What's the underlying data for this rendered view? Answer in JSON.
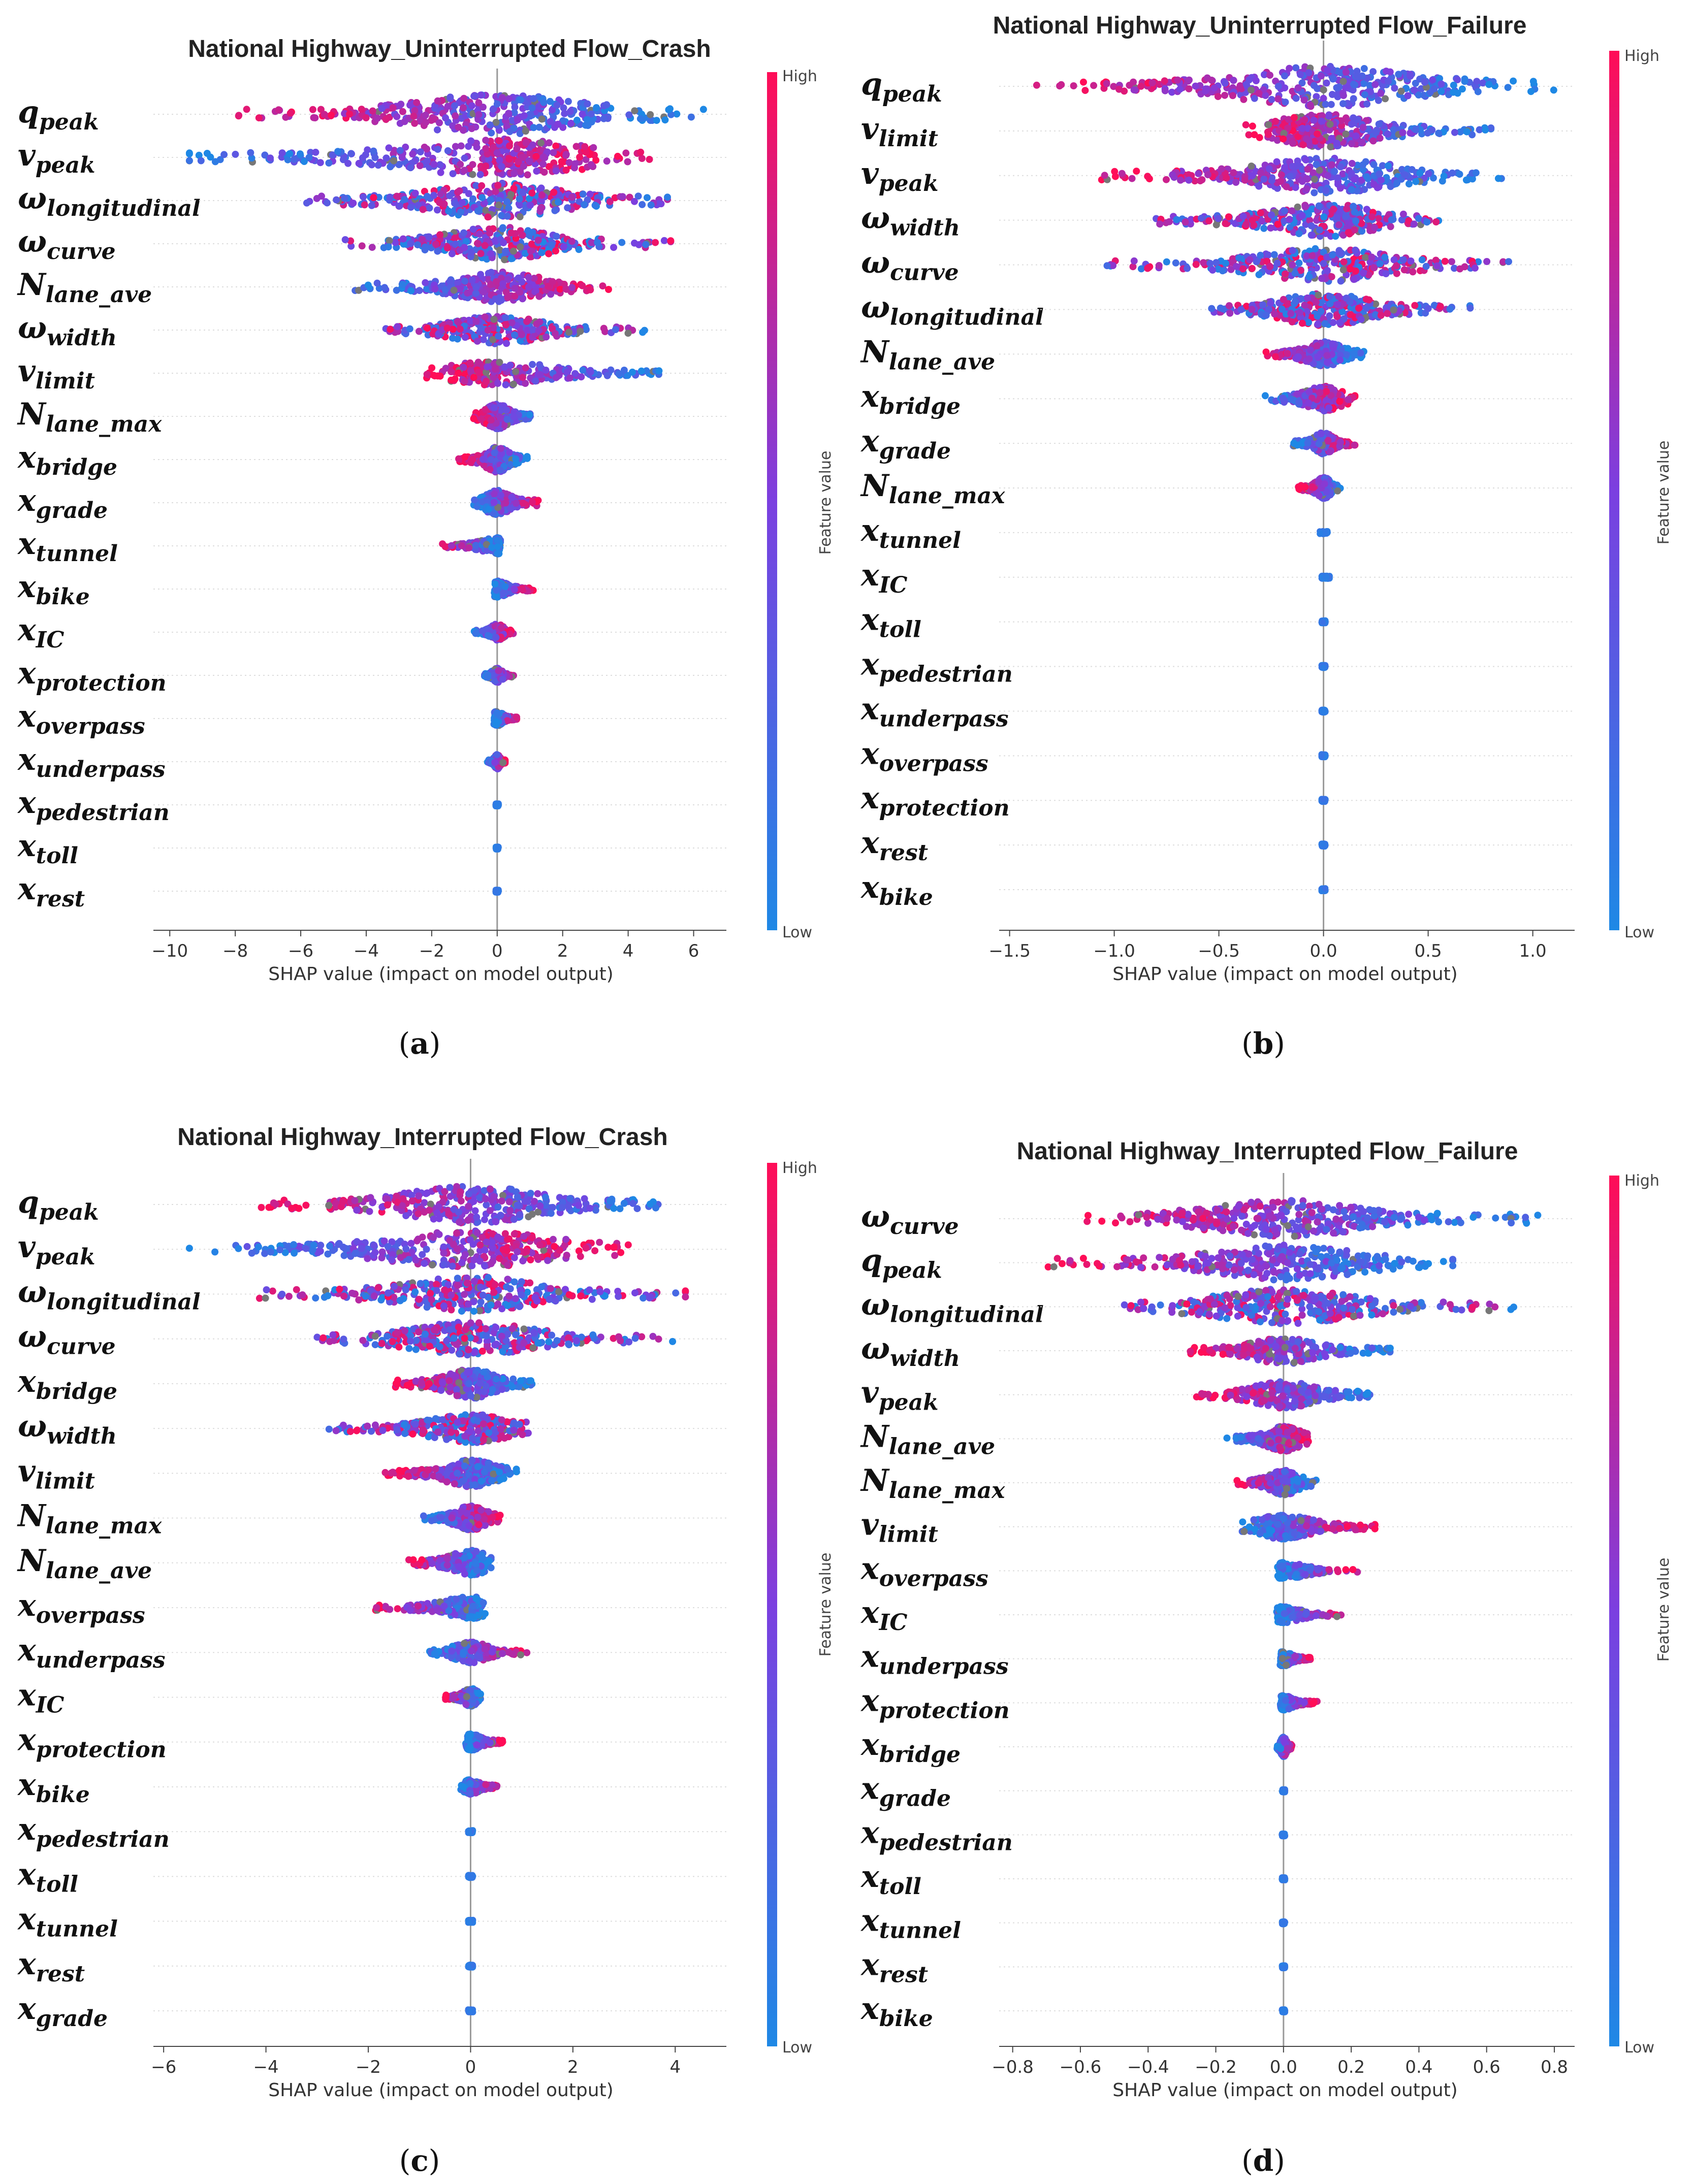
{
  "colorbar": {
    "high_label": "High",
    "low_label": "Low",
    "title": "Feature value",
    "color_low": "#1e88e5",
    "color_mid": "#7b3fe0",
    "color_high": "#ff0d57"
  },
  "chart_data": [
    {
      "type": "scatter",
      "subtype": "shap-beeswarm",
      "panel_caption": "a",
      "title": "National Highway_Uninterrupted Flow_Crash",
      "xlabel": "SHAP value (impact on model output)",
      "xlim": [
        -10.5,
        7.0
      ],
      "xticks": [
        -10,
        -8,
        -6,
        -4,
        -2,
        0,
        2,
        4,
        6
      ],
      "features": [
        {
          "base": "q",
          "sub": "peak",
          "min": -8.6,
          "max": 6.3,
          "spread": 1.0,
          "pattern": "hilo"
        },
        {
          "base": "v",
          "sub": "peak",
          "min": -9.4,
          "max": 4.8,
          "spread": 0.9,
          "pattern": "lohi"
        },
        {
          "base": "ω",
          "sub": "longitudinal",
          "min": -6.3,
          "max": 5.2,
          "spread": 0.85,
          "pattern": "mixed"
        },
        {
          "base": "ω",
          "sub": "curve",
          "min": -5.0,
          "max": 5.3,
          "spread": 0.8,
          "pattern": "mixed"
        },
        {
          "base": "N",
          "sub": "lane_ave",
          "min": -4.5,
          "max": 3.4,
          "spread": 0.7,
          "pattern": "lohi"
        },
        {
          "base": "ω",
          "sub": "width",
          "min": -3.4,
          "max": 4.5,
          "spread": 0.65,
          "pattern": "mixed"
        },
        {
          "base": "v",
          "sub": "limit",
          "min": -2.2,
          "max": 5.0,
          "spread": 0.55,
          "pattern": "hilo"
        },
        {
          "base": "N",
          "sub": "lane_max",
          "min": -0.8,
          "max": 1.2,
          "spread": 0.55,
          "pattern": "hilo"
        },
        {
          "base": "x",
          "sub": "bridge",
          "min": -1.2,
          "max": 1.0,
          "spread": 0.55,
          "pattern": "hilo"
        },
        {
          "base": "x",
          "sub": "grade",
          "min": -0.8,
          "max": 1.3,
          "spread": 0.55,
          "pattern": "lohi"
        },
        {
          "base": "x",
          "sub": "tunnel",
          "min": -1.8,
          "max": 0.1,
          "spread": 0.3,
          "pattern": "hilo"
        },
        {
          "base": "x",
          "sub": "bike",
          "min": -0.1,
          "max": 1.1,
          "spread": 0.3,
          "pattern": "lohi"
        },
        {
          "base": "x",
          "sub": "IC",
          "min": -0.7,
          "max": 0.5,
          "spread": 0.3,
          "pattern": "lohi"
        },
        {
          "base": "x",
          "sub": "protection",
          "min": -0.4,
          "max": 0.5,
          "spread": 0.25,
          "pattern": "lohi"
        },
        {
          "base": "x",
          "sub": "overpass",
          "min": -0.1,
          "max": 0.6,
          "spread": 0.25,
          "pattern": "lohi"
        },
        {
          "base": "x",
          "sub": "underpass",
          "min": -0.3,
          "max": 0.3,
          "spread": 0.25,
          "pattern": "lohi"
        },
        {
          "base": "x",
          "sub": "pedestrian",
          "min": -0.05,
          "max": 0.05,
          "spread": 0.2,
          "pattern": "line"
        },
        {
          "base": "x",
          "sub": "toll",
          "min": -0.05,
          "max": 0.05,
          "spread": 0.2,
          "pattern": "line"
        },
        {
          "base": "x",
          "sub": "rest",
          "min": -0.05,
          "max": 0.05,
          "spread": 0.2,
          "pattern": "line"
        }
      ]
    },
    {
      "type": "scatter",
      "subtype": "shap-beeswarm",
      "panel_caption": "b",
      "title": "National Highway_Uninterrupted Flow_Failure",
      "xlabel": "SHAP value (impact on model output)",
      "xlim": [
        -1.55,
        1.2
      ],
      "xticks": [
        -1.5,
        -1.0,
        -0.5,
        0.0,
        0.5,
        1.0
      ],
      "features": [
        {
          "base": "q",
          "sub": "peak",
          "min": -1.4,
          "max": 1.1,
          "spread": 1.0,
          "pattern": "hilo"
        },
        {
          "base": "v",
          "sub": "limit",
          "min": -0.4,
          "max": 0.8,
          "spread": 0.8,
          "pattern": "hilo"
        },
        {
          "base": "v",
          "sub": "peak",
          "min": -1.1,
          "max": 0.85,
          "spread": 0.85,
          "pattern": "hilo"
        },
        {
          "base": "ω",
          "sub": "width",
          "min": -0.8,
          "max": 0.55,
          "spread": 0.8,
          "pattern": "mixed"
        },
        {
          "base": "ω",
          "sub": "curve",
          "min": -1.05,
          "max": 0.9,
          "spread": 0.8,
          "pattern": "mixed"
        },
        {
          "base": "ω",
          "sub": "longitudinal",
          "min": -0.55,
          "max": 0.75,
          "spread": 0.75,
          "pattern": "mixed"
        },
        {
          "base": "N",
          "sub": "lane_ave",
          "min": -0.3,
          "max": 0.2,
          "spread": 0.55,
          "pattern": "hilo"
        },
        {
          "base": "x",
          "sub": "bridge",
          "min": -0.3,
          "max": 0.15,
          "spread": 0.55,
          "pattern": "lohi"
        },
        {
          "base": "x",
          "sub": "grade",
          "min": -0.15,
          "max": 0.15,
          "spread": 0.45,
          "pattern": "lohi"
        },
        {
          "base": "x",
          "sub": "lane_max",
          "base_override": "N",
          "min": -0.12,
          "max": 0.08,
          "spread": 0.45,
          "pattern": "hilo"
        },
        {
          "base": "x",
          "sub": "tunnel",
          "min": -0.02,
          "max": 0.02,
          "spread": 0.25,
          "pattern": "line"
        },
        {
          "base": "x",
          "sub": "IC",
          "min": -0.01,
          "max": 0.03,
          "spread": 0.25,
          "pattern": "line"
        },
        {
          "base": "x",
          "sub": "toll",
          "min": -0.01,
          "max": 0.01,
          "spread": 0.2,
          "pattern": "line"
        },
        {
          "base": "x",
          "sub": "pedestrian",
          "min": -0.01,
          "max": 0.01,
          "spread": 0.2,
          "pattern": "line"
        },
        {
          "base": "x",
          "sub": "underpass",
          "min": -0.01,
          "max": 0.01,
          "spread": 0.2,
          "pattern": "line"
        },
        {
          "base": "x",
          "sub": "overpass",
          "min": -0.01,
          "max": 0.01,
          "spread": 0.2,
          "pattern": "line"
        },
        {
          "base": "x",
          "sub": "protection",
          "min": -0.01,
          "max": 0.01,
          "spread": 0.2,
          "pattern": "line"
        },
        {
          "base": "x",
          "sub": "rest",
          "min": -0.01,
          "max": 0.01,
          "spread": 0.2,
          "pattern": "line"
        },
        {
          "base": "x",
          "sub": "bike",
          "min": -0.01,
          "max": 0.01,
          "spread": 0.2,
          "pattern": "line"
        }
      ]
    },
    {
      "type": "scatter",
      "subtype": "shap-beeswarm",
      "panel_caption": "c",
      "title": "National Highway_Interrupted Flow_Crash",
      "xlabel": "SHAP value (impact on model output)",
      "xlim": [
        -6.2,
        5.0
      ],
      "xticks": [
        -6,
        -4,
        -2,
        0,
        2,
        4
      ],
      "features": [
        {
          "base": "q",
          "sub": "peak",
          "min": -4.3,
          "max": 4.5,
          "spread": 0.9,
          "pattern": "hilo"
        },
        {
          "base": "v",
          "sub": "peak",
          "min": -5.6,
          "max": 3.2,
          "spread": 0.9,
          "pattern": "lohi"
        },
        {
          "base": "ω",
          "sub": "longitudinal",
          "min": -4.3,
          "max": 4.2,
          "spread": 0.85,
          "pattern": "mixed"
        },
        {
          "base": "ω",
          "sub": "curve",
          "min": -3.0,
          "max": 4.0,
          "spread": 0.8,
          "pattern": "mixed"
        },
        {
          "base": "x",
          "sub": "bridge",
          "min": -1.5,
          "max": 1.2,
          "spread": 0.7,
          "pattern": "hilo"
        },
        {
          "base": "ω",
          "sub": "width",
          "min": -2.8,
          "max": 1.4,
          "spread": 0.65,
          "pattern": "mixed"
        },
        {
          "base": "v",
          "sub": "limit",
          "min": -1.7,
          "max": 1.0,
          "spread": 0.6,
          "pattern": "hilo"
        },
        {
          "base": "N",
          "sub": "lane_max",
          "min": -1.0,
          "max": 0.6,
          "spread": 0.55,
          "pattern": "lohi"
        },
        {
          "base": "N",
          "sub": "lane_ave",
          "min": -1.3,
          "max": 0.4,
          "spread": 0.55,
          "pattern": "hilo"
        },
        {
          "base": "x",
          "sub": "overpass",
          "min": -1.9,
          "max": 0.3,
          "spread": 0.45,
          "pattern": "hilo"
        },
        {
          "base": "x",
          "sub": "underpass",
          "min": -0.8,
          "max": 1.1,
          "spread": 0.45,
          "pattern": "lohi"
        },
        {
          "base": "x",
          "sub": "IC",
          "min": -0.5,
          "max": 0.2,
          "spread": 0.35,
          "pattern": "hilo"
        },
        {
          "base": "x",
          "sub": "protection",
          "min": -0.1,
          "max": 0.7,
          "spread": 0.3,
          "pattern": "lohi"
        },
        {
          "base": "x",
          "sub": "bike",
          "min": -0.2,
          "max": 0.6,
          "spread": 0.25,
          "pattern": "lohi"
        },
        {
          "base": "x",
          "sub": "pedestrian",
          "min": -0.05,
          "max": 0.05,
          "spread": 0.2,
          "pattern": "line"
        },
        {
          "base": "x",
          "sub": "toll",
          "min": -0.05,
          "max": 0.05,
          "spread": 0.2,
          "pattern": "line"
        },
        {
          "base": "x",
          "sub": "tunnel",
          "min": -0.05,
          "max": 0.05,
          "spread": 0.2,
          "pattern": "line"
        },
        {
          "base": "x",
          "sub": "rest",
          "min": -0.05,
          "max": 0.05,
          "spread": 0.2,
          "pattern": "line"
        },
        {
          "base": "x",
          "sub": "grade",
          "min": -0.05,
          "max": 0.05,
          "spread": 0.2,
          "pattern": "line"
        }
      ]
    },
    {
      "type": "scatter",
      "subtype": "shap-beeswarm",
      "panel_caption": "d",
      "title": "National Highway_Interrupted Flow_Failure",
      "xlabel": "SHAP value (impact on model output)",
      "xlim": [
        -0.84,
        0.86
      ],
      "xticks": [
        -0.8,
        -0.6,
        -0.4,
        -0.2,
        0.0,
        0.2,
        0.4,
        0.6,
        0.8
      ],
      "features": [
        {
          "base": "ω",
          "sub": "curve",
          "min": -0.65,
          "max": 0.78,
          "spread": 0.9,
          "pattern": "hilo"
        },
        {
          "base": "q",
          "sub": "peak",
          "min": -0.72,
          "max": 0.5,
          "spread": 0.85,
          "pattern": "hilo"
        },
        {
          "base": "ω",
          "sub": "longitudinal",
          "min": -0.47,
          "max": 0.68,
          "spread": 0.85,
          "pattern": "mixed"
        },
        {
          "base": "ω",
          "sub": "width",
          "min": -0.28,
          "max": 0.32,
          "spread": 0.6,
          "pattern": "hilo"
        },
        {
          "base": "v",
          "sub": "peak",
          "min": -0.27,
          "max": 0.31,
          "spread": 0.6,
          "pattern": "hilo"
        },
        {
          "base": "N",
          "sub": "lane_ave",
          "min": -0.17,
          "max": 0.08,
          "spread": 0.55,
          "pattern": "lohi"
        },
        {
          "base": "N",
          "sub": "lane_max",
          "min": -0.15,
          "max": 0.1,
          "spread": 0.55,
          "pattern": "hilo"
        },
        {
          "base": "v",
          "sub": "limit",
          "min": -0.13,
          "max": 0.27,
          "spread": 0.55,
          "pattern": "lohi"
        },
        {
          "base": "x",
          "sub": "overpass",
          "min": -0.02,
          "max": 0.22,
          "spread": 0.3,
          "pattern": "lohi"
        },
        {
          "base": "x",
          "sub": "IC",
          "min": -0.02,
          "max": 0.17,
          "spread": 0.3,
          "pattern": "lohi"
        },
        {
          "base": "x",
          "sub": "underpass",
          "min": -0.01,
          "max": 0.08,
          "spread": 0.25,
          "pattern": "lohi"
        },
        {
          "base": "x",
          "sub": "protection",
          "min": -0.01,
          "max": 0.1,
          "spread": 0.25,
          "pattern": "lohi"
        },
        {
          "base": "x",
          "sub": "bridge",
          "min": -0.02,
          "max": 0.03,
          "spread": 0.4,
          "pattern": "lohi"
        },
        {
          "base": "x",
          "sub": "grade",
          "min": -0.005,
          "max": 0.005,
          "spread": 0.2,
          "pattern": "line"
        },
        {
          "base": "x",
          "sub": "pedestrian",
          "min": -0.005,
          "max": 0.005,
          "spread": 0.2,
          "pattern": "line"
        },
        {
          "base": "x",
          "sub": "toll",
          "min": -0.005,
          "max": 0.005,
          "spread": 0.2,
          "pattern": "line"
        },
        {
          "base": "x",
          "sub": "tunnel",
          "min": -0.005,
          "max": 0.005,
          "spread": 0.2,
          "pattern": "line"
        },
        {
          "base": "x",
          "sub": "rest",
          "min": -0.005,
          "max": 0.005,
          "spread": 0.2,
          "pattern": "line"
        },
        {
          "base": "x",
          "sub": "bike",
          "min": -0.005,
          "max": 0.005,
          "spread": 0.2,
          "pattern": "line"
        }
      ]
    }
  ]
}
